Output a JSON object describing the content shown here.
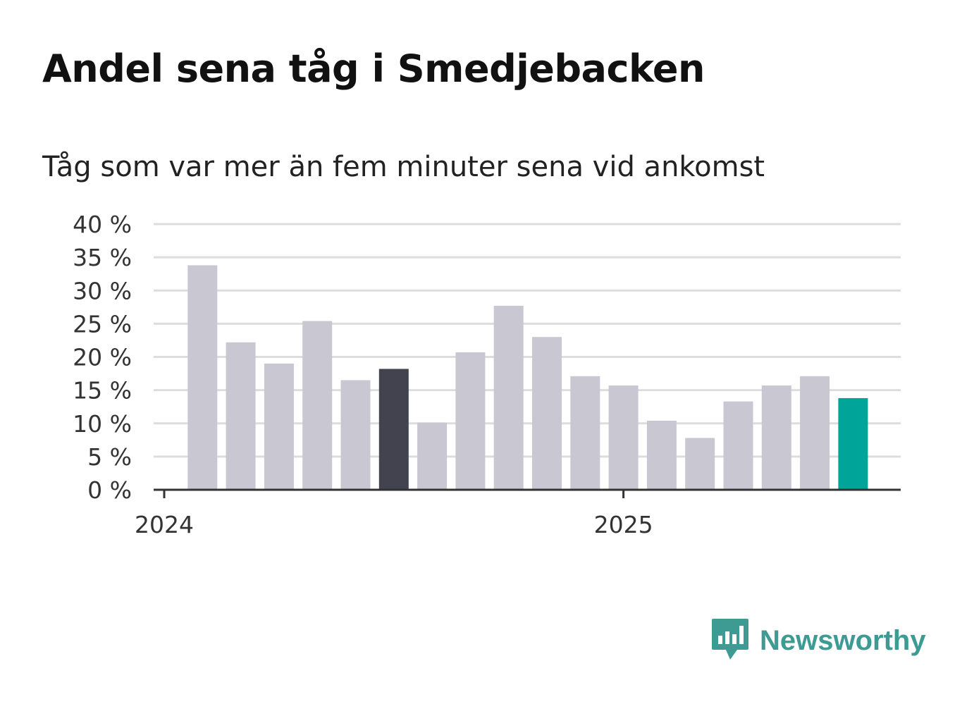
{
  "title": "Andel sena tåg i Smedjebacken",
  "subtitle": "Tåg som var mer än fem minuter sena vid ankomst",
  "brand": {
    "name": "Newsworthy",
    "color": "#3d9b94",
    "icon": "newsworthy-logo-icon"
  },
  "colors": {
    "bar_default": "#c8c7d2",
    "bar_highlight": "#43424f",
    "bar_latest": "#00a499",
    "grid": "#dddddd",
    "axis": "#333333",
    "text": "#333333"
  },
  "chart_data": {
    "type": "bar",
    "ylim": [
      0,
      40
    ],
    "yticks": [
      {
        "value": 0,
        "label": "0 %"
      },
      {
        "value": 5,
        "label": "5 %"
      },
      {
        "value": 10,
        "label": "10 %"
      },
      {
        "value": 15,
        "label": "15 %"
      },
      {
        "value": 20,
        "label": "20 %"
      },
      {
        "value": 25,
        "label": "25 %"
      },
      {
        "value": 30,
        "label": "30 %"
      },
      {
        "value": 35,
        "label": "35 %"
      },
      {
        "value": 40,
        "label": "40 %"
      }
    ],
    "xticks": [
      {
        "label": "2024",
        "month_index": 0
      },
      {
        "label": "2025",
        "month_index": 12
      }
    ],
    "bars": [
      {
        "month_index": 1,
        "value": 33.8,
        "highlight": "default"
      },
      {
        "month_index": 2,
        "value": 22.2,
        "highlight": "default"
      },
      {
        "month_index": 3,
        "value": 19.0,
        "highlight": "default"
      },
      {
        "month_index": 4,
        "value": 25.4,
        "highlight": "default"
      },
      {
        "month_index": 5,
        "value": 16.5,
        "highlight": "default"
      },
      {
        "month_index": 6,
        "value": 18.2,
        "highlight": "dark"
      },
      {
        "month_index": 7,
        "value": 10.1,
        "highlight": "default"
      },
      {
        "month_index": 8,
        "value": 20.7,
        "highlight": "default"
      },
      {
        "month_index": 9,
        "value": 27.7,
        "highlight": "default"
      },
      {
        "month_index": 10,
        "value": 23.0,
        "highlight": "default"
      },
      {
        "month_index": 11,
        "value": 17.1,
        "highlight": "default"
      },
      {
        "month_index": 12,
        "value": 15.7,
        "highlight": "default"
      },
      {
        "month_index": 13,
        "value": 10.4,
        "highlight": "default"
      },
      {
        "month_index": 14,
        "value": 7.8,
        "highlight": "default"
      },
      {
        "month_index": 15,
        "value": 13.3,
        "highlight": "default"
      },
      {
        "month_index": 16,
        "value": 15.7,
        "highlight": "default"
      },
      {
        "month_index": 17,
        "value": 17.1,
        "highlight": "default"
      },
      {
        "month_index": 18,
        "value": 13.8,
        "highlight": "latest"
      }
    ],
    "grid": true,
    "legend": "none"
  }
}
